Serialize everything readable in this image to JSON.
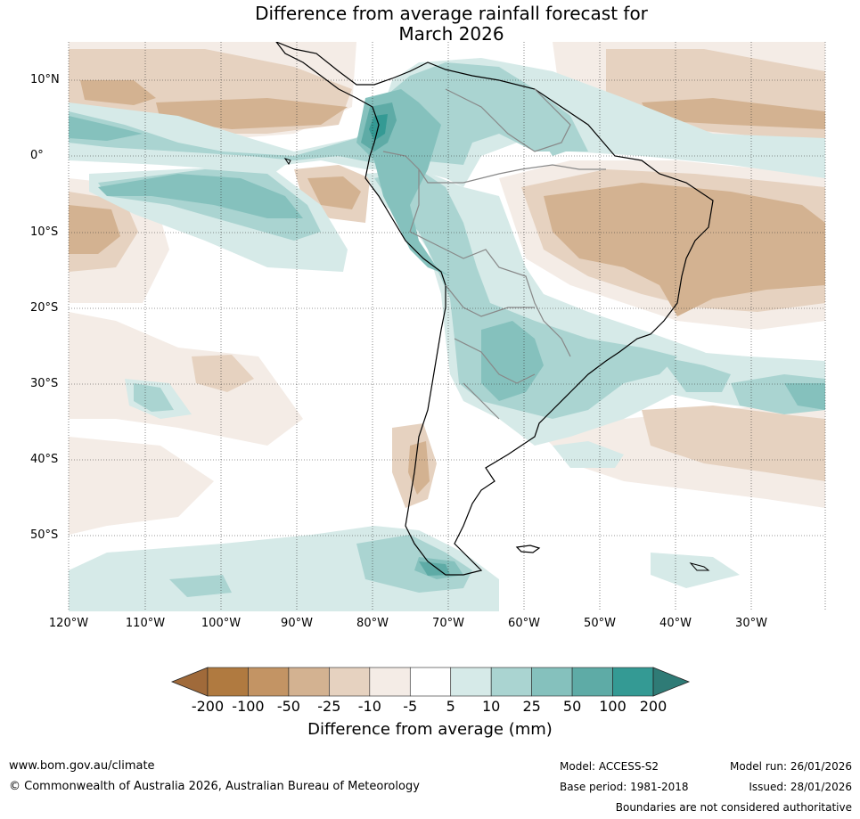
{
  "title_line1": "Difference from average rainfall forecast for",
  "title_line2": "March 2026",
  "map": {
    "region": "South America",
    "lat_labels": [
      "10°N",
      "0°",
      "10°S",
      "20°S",
      "30°S",
      "40°S",
      "50°S"
    ],
    "lon_labels": [
      "120°W",
      "110°W",
      "100°W",
      "90°W",
      "80°W",
      "70°W",
      "60°W",
      "50°W",
      "40°W",
      "30°W"
    ]
  },
  "legend": {
    "ticks": [
      "-200",
      "-100",
      "-50",
      "-25",
      "-10",
      "-5",
      "5",
      "10",
      "25",
      "50",
      "100",
      "200"
    ],
    "colors": [
      "#a06a3a",
      "#b07a40",
      "#c39464",
      "#d3b291",
      "#e6d2c0",
      "#f4ece6",
      "#ffffff",
      "#d6eae8",
      "#aad4d1",
      "#85c1bd",
      "#5eaba6",
      "#349a94",
      "#2f7b76"
    ],
    "title": "Difference from average (mm)"
  },
  "footer": {
    "website": "www.bom.gov.au/climate",
    "copyright": "© Commonwealth of Australia 2026, Australian Bureau of Meteorology",
    "model": "Model: ACCESS-S2",
    "base_period": "Base period: 1981-2018",
    "model_run": "Model run: 26/01/2026",
    "issued": "Issued: 28/01/2026",
    "disclaimer": "Boundaries are not considered authoritative"
  }
}
